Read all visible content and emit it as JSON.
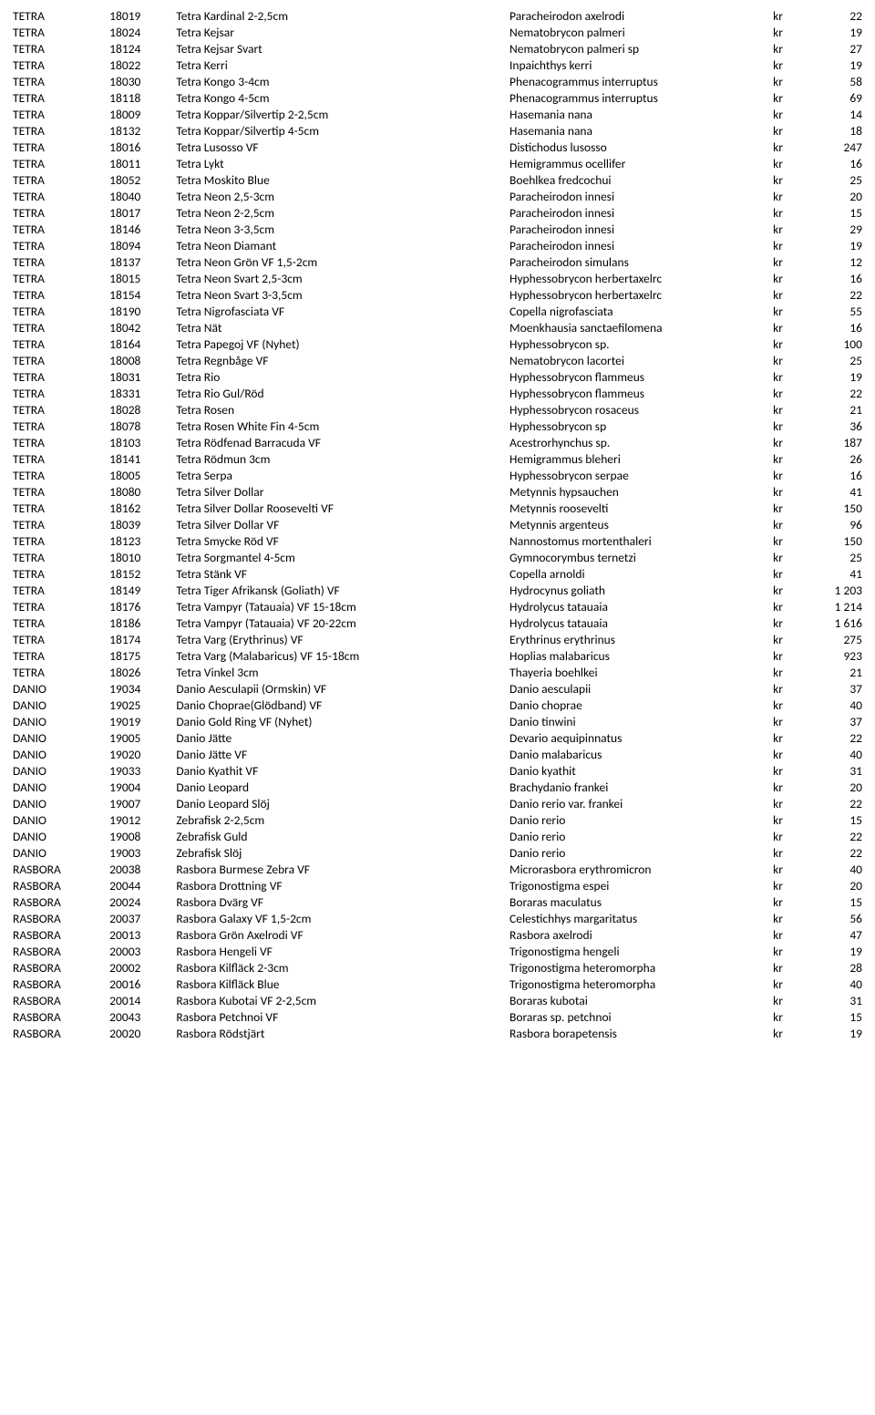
{
  "currency": "kr",
  "rows": [
    {
      "cat": "TETRA",
      "code": "18019",
      "name": "Tetra Kardinal 2-2,5cm",
      "sci": "Paracheirodon axelrodi",
      "price": "22"
    },
    {
      "cat": "TETRA",
      "code": "18024",
      "name": "Tetra Kejsar",
      "sci": "Nematobrycon palmeri",
      "price": "19"
    },
    {
      "cat": "TETRA",
      "code": "18124",
      "name": "Tetra Kejsar Svart",
      "sci": "Nematobrycon palmeri sp",
      "price": "27"
    },
    {
      "cat": "TETRA",
      "code": "18022",
      "name": "Tetra Kerri",
      "sci": "Inpaichthys kerri",
      "price": "19"
    },
    {
      "cat": "TETRA",
      "code": "18030",
      "name": "Tetra Kongo 3-4cm",
      "sci": "Phenacogrammus interruptus",
      "price": "58"
    },
    {
      "cat": "TETRA",
      "code": "18118",
      "name": "Tetra Kongo 4-5cm",
      "sci": "Phenacogrammus interruptus",
      "price": "69"
    },
    {
      "cat": "TETRA",
      "code": "18009",
      "name": "Tetra Koppar/Silvertip 2-2,5cm",
      "sci": "Hasemania nana",
      "price": "14"
    },
    {
      "cat": "TETRA",
      "code": "18132",
      "name": "Tetra Koppar/Silvertip 4-5cm",
      "sci": "Hasemania nana",
      "price": "18"
    },
    {
      "cat": "TETRA",
      "code": "18016",
      "name": "Tetra Lusosso VF",
      "sci": "Distichodus lusosso",
      "price": "247"
    },
    {
      "cat": "TETRA",
      "code": "18011",
      "name": "Tetra Lykt",
      "sci": "Hemigrammus ocellifer",
      "price": "16"
    },
    {
      "cat": "TETRA",
      "code": "18052",
      "name": "Tetra Moskito Blue",
      "sci": "Boehlkea fredcochui",
      "price": "25"
    },
    {
      "cat": "TETRA",
      "code": "18040",
      "name": "Tetra Neon 2,5-3cm",
      "sci": "Paracheirodon innesi",
      "price": "20"
    },
    {
      "cat": "TETRA",
      "code": "18017",
      "name": "Tetra Neon 2-2,5cm",
      "sci": "Paracheirodon innesi",
      "price": "15"
    },
    {
      "cat": "TETRA",
      "code": "18146",
      "name": "Tetra Neon 3-3,5cm",
      "sci": "Paracheirodon innesi",
      "price": "29"
    },
    {
      "cat": "TETRA",
      "code": "18094",
      "name": "Tetra Neon Diamant",
      "sci": "Paracheirodon innesi",
      "price": "19"
    },
    {
      "cat": "TETRA",
      "code": "18137",
      "name": "Tetra Neon Grön VF 1,5-2cm",
      "sci": "Paracheirodon simulans",
      "price": "12"
    },
    {
      "cat": "TETRA",
      "code": "18015",
      "name": "Tetra Neon Svart 2,5-3cm",
      "sci": "Hyphessobrycon herbertaxelrc",
      "price": "16"
    },
    {
      "cat": "TETRA",
      "code": "18154",
      "name": "Tetra Neon Svart 3-3,5cm",
      "sci": "Hyphessobrycon herbertaxelrc",
      "price": "22"
    },
    {
      "cat": "TETRA",
      "code": "18190",
      "name": "Tetra Nigrofasciata VF",
      "sci": "Copella nigrofasciata",
      "price": "55"
    },
    {
      "cat": "TETRA",
      "code": "18042",
      "name": "Tetra Nät",
      "sci": "Moenkhausia sanctaefilomena",
      "price": "16"
    },
    {
      "cat": "TETRA",
      "code": "18164",
      "name": "Tetra Papegoj VF (Nyhet)",
      "sci": "Hyphessobrycon sp.",
      "price": "100"
    },
    {
      "cat": "TETRA",
      "code": "18008",
      "name": "Tetra Regnbåge VF",
      "sci": "Nematobrycon lacortei",
      "price": "25"
    },
    {
      "cat": "TETRA",
      "code": "18031",
      "name": "Tetra Rio",
      "sci": "Hyphessobrycon flammeus",
      "price": "19"
    },
    {
      "cat": "TETRA",
      "code": "18331",
      "name": "Tetra Rio Gul/Röd",
      "sci": "Hyphessobrycon flammeus",
      "price": "22"
    },
    {
      "cat": "TETRA",
      "code": "18028",
      "name": "Tetra Rosen",
      "sci": "Hyphessobrycon rosaceus",
      "price": "21"
    },
    {
      "cat": "TETRA",
      "code": "18078",
      "name": "Tetra Rosen White Fin 4-5cm",
      "sci": "Hyphessobrycon sp",
      "price": "36"
    },
    {
      "cat": "TETRA",
      "code": "18103",
      "name": "Tetra Rödfenad Barracuda VF",
      "sci": "Acestrorhynchus sp.",
      "price": "187"
    },
    {
      "cat": "TETRA",
      "code": "18141",
      "name": "Tetra Rödmun 3cm",
      "sci": "Hemigrammus bleheri",
      "price": "26"
    },
    {
      "cat": "TETRA",
      "code": "18005",
      "name": "Tetra Serpa",
      "sci": "Hyphessobrycon serpae",
      "price": "16"
    },
    {
      "cat": "TETRA",
      "code": "18080",
      "name": "Tetra Silver Dollar",
      "sci": "Metynnis hypsauchen",
      "price": "41"
    },
    {
      "cat": "TETRA",
      "code": "18162",
      "name": "Tetra Silver Dollar Roosevelti VF",
      "sci": "Metynnis roosevelti",
      "price": "150"
    },
    {
      "cat": "TETRA",
      "code": "18039",
      "name": "Tetra Silver Dollar VF",
      "sci": "Metynnis argenteus",
      "price": "96"
    },
    {
      "cat": "TETRA",
      "code": "18123",
      "name": "Tetra Smycke Röd VF",
      "sci": "Nannostomus mortenthaleri",
      "price": "150"
    },
    {
      "cat": "TETRA",
      "code": "18010",
      "name": "Tetra Sorgmantel 4-5cm",
      "sci": "Gymnocorymbus ternetzi",
      "price": "25"
    },
    {
      "cat": "TETRA",
      "code": "18152",
      "name": "Tetra Stänk VF",
      "sci": "Copella arnoldi",
      "price": "41"
    },
    {
      "cat": "TETRA",
      "code": "18149",
      "name": "Tetra Tiger Afrikansk (Goliath) VF",
      "sci": "Hydrocynus goliath",
      "price": "1 203"
    },
    {
      "cat": "TETRA",
      "code": "18176",
      "name": "Tetra Vampyr (Tatauaia) VF 15-18cm",
      "sci": "Hydrolycus tatauaia",
      "price": "1 214"
    },
    {
      "cat": "TETRA",
      "code": "18186",
      "name": "Tetra Vampyr (Tatauaia) VF 20-22cm",
      "sci": "Hydrolycus tatauaia",
      "price": "1 616"
    },
    {
      "cat": "TETRA",
      "code": "18174",
      "name": "Tetra Varg (Erythrinus) VF",
      "sci": "Erythrinus erythrinus",
      "price": "275"
    },
    {
      "cat": "TETRA",
      "code": "18175",
      "name": "Tetra Varg (Malabaricus) VF 15-18cm",
      "sci": "Hoplias malabaricus",
      "price": "923"
    },
    {
      "cat": "TETRA",
      "code": "18026",
      "name": "Tetra Vinkel 3cm",
      "sci": "Thayeria boehlkei",
      "price": "21"
    },
    {
      "cat": "DANIO",
      "code": "19034",
      "name": "Danio Aesculapii (Ormskin) VF",
      "sci": "Danio aesculapii",
      "price": "37"
    },
    {
      "cat": "DANIO",
      "code": "19025",
      "name": "Danio Choprae(Glödband) VF",
      "sci": "Danio choprae",
      "price": "40"
    },
    {
      "cat": "DANIO",
      "code": "19019",
      "name": "Danio Gold Ring VF (Nyhet)",
      "sci": "Danio tinwini",
      "price": "37"
    },
    {
      "cat": "DANIO",
      "code": "19005",
      "name": "Danio Jätte",
      "sci": "Devario aequipinnatus",
      "price": "22"
    },
    {
      "cat": "DANIO",
      "code": "19020",
      "name": "Danio Jätte VF",
      "sci": "Danio malabaricus",
      "price": "40"
    },
    {
      "cat": "DANIO",
      "code": "19033",
      "name": "Danio Kyathit VF",
      "sci": "Danio kyathit",
      "price": "31"
    },
    {
      "cat": "DANIO",
      "code": "19004",
      "name": "Danio Leopard",
      "sci": "Brachydanio frankei",
      "price": "20"
    },
    {
      "cat": "DANIO",
      "code": "19007",
      "name": "Danio Leopard Slöj",
      "sci": "Danio rerio var. frankei",
      "price": "22"
    },
    {
      "cat": "DANIO",
      "code": "19012",
      "name": "Zebrafisk 2-2,5cm",
      "sci": "Danio rerio",
      "price": "15"
    },
    {
      "cat": "DANIO",
      "code": "19008",
      "name": "Zebrafisk Guld",
      "sci": "Danio rerio",
      "price": "22"
    },
    {
      "cat": "DANIO",
      "code": "19003",
      "name": "Zebrafisk Slöj",
      "sci": "Danio rerio",
      "price": "22"
    },
    {
      "cat": "RASBORA",
      "code": "20038",
      "name": "Rasbora Burmese Zebra VF",
      "sci": "Microrasbora erythromicron",
      "price": "40"
    },
    {
      "cat": "RASBORA",
      "code": "20044",
      "name": "Rasbora Drottning VF",
      "sci": "Trigonostigma espei",
      "price": "20"
    },
    {
      "cat": "RASBORA",
      "code": "20024",
      "name": "Rasbora Dvärg VF",
      "sci": "Boraras maculatus",
      "price": "15"
    },
    {
      "cat": "RASBORA",
      "code": "20037",
      "name": "Rasbora Galaxy VF 1,5-2cm",
      "sci": "Celestichhys margaritatus",
      "price": "56"
    },
    {
      "cat": "RASBORA",
      "code": "20013",
      "name": "Rasbora Grön Axelrodi VF",
      "sci": "Rasbora axelrodi",
      "price": "47"
    },
    {
      "cat": "RASBORA",
      "code": "20003",
      "name": "Rasbora Hengeli VF",
      "sci": "Trigonostigma hengeli",
      "price": "19"
    },
    {
      "cat": "RASBORA",
      "code": "20002",
      "name": "Rasbora Kilfläck 2-3cm",
      "sci": "Trigonostigma heteromorpha",
      "price": "28"
    },
    {
      "cat": "RASBORA",
      "code": "20016",
      "name": "Rasbora Kilfläck Blue",
      "sci": "Trigonostigma heteromorpha",
      "price": "40"
    },
    {
      "cat": "RASBORA",
      "code": "20014",
      "name": "Rasbora Kubotai VF 2-2,5cm",
      "sci": "Boraras kubotai",
      "price": "31"
    },
    {
      "cat": "RASBORA",
      "code": "20043",
      "name": "Rasbora Petchnoi VF",
      "sci": "Boraras sp. petchnoi",
      "price": "15"
    },
    {
      "cat": "RASBORA",
      "code": "20020",
      "name": "Rasbora Rödstjärt",
      "sci": "Rasbora borapetensis",
      "price": "19"
    }
  ]
}
